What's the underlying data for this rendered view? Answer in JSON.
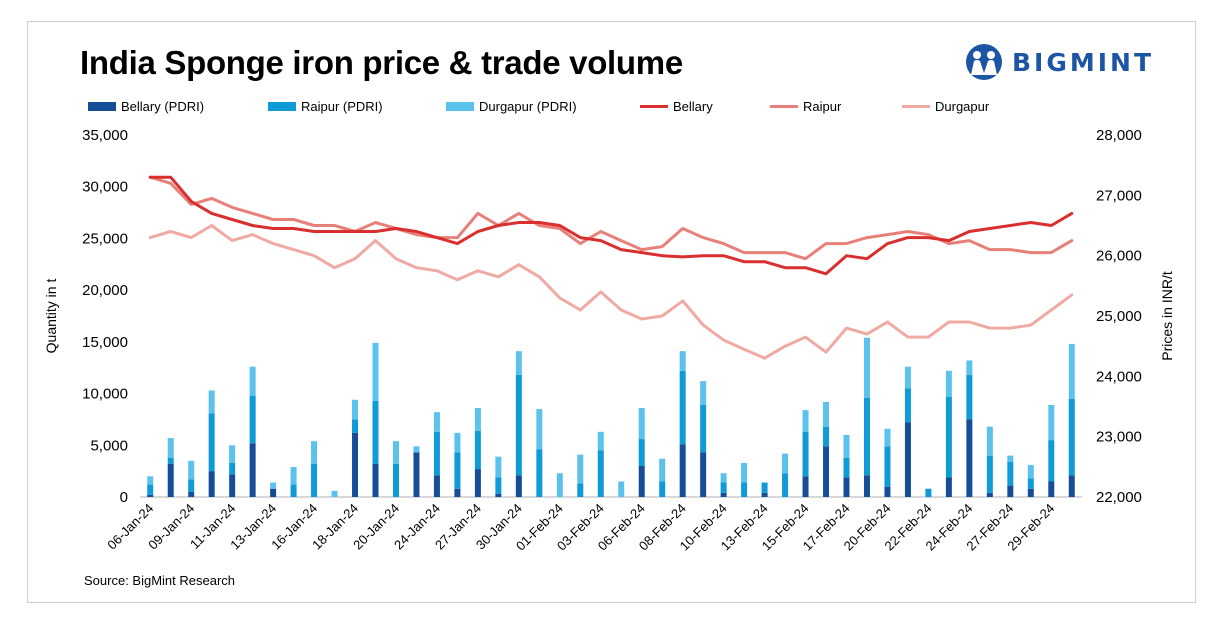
{
  "title": "India Sponge iron price & trade volume",
  "logo": {
    "text": "BIGMINT",
    "icon": "bigmint-people-icon"
  },
  "source": "Source: BigMint Research",
  "colors": {
    "bellary_bar": "#174c96",
    "raipur_bar": "#0e9bd7",
    "durgapur_bar": "#5bc2eb",
    "bellary_line": "#d92f2f",
    "raipur_line": "#e8807a",
    "durgapur_line": "#f0aaa4",
    "logo": "#1d55a5"
  },
  "legend": [
    {
      "label": "Bellary (PDRI)",
      "kind": "bar",
      "color": "#174c96"
    },
    {
      "label": "Raipur (PDRI)",
      "kind": "bar",
      "color": "#0e9bd7"
    },
    {
      "label": "Durgapur (PDRI)",
      "kind": "bar",
      "color": "#5bc2eb"
    },
    {
      "label": "Bellary",
      "kind": "line",
      "color": "#d92f2f"
    },
    {
      "label": "Raipur",
      "kind": "line",
      "color": "#e8807a"
    },
    {
      "label": "Durgapur",
      "kind": "line",
      "color": "#f0aaa4"
    }
  ],
  "chart_data": {
    "type": "bar",
    "stacked": true,
    "combo": "stacked bars (left axis) with lines (right axis)",
    "ylabel": "Quantity in t",
    "y2label": "Prices in INR/t",
    "ylim": [
      0,
      35000
    ],
    "y2lim": [
      22000,
      28000
    ],
    "yticks": [
      "0",
      "5,000",
      "10,000",
      "15,000",
      "20,000",
      "25,000",
      "30,000",
      "35,000"
    ],
    "y2ticks": [
      "22,000",
      "23,000",
      "24,000",
      "25,000",
      "26,000",
      "27,000",
      "28,000"
    ],
    "legend_position": "top",
    "grid": false,
    "xtick_labels": [
      "06-Jan-24",
      "09-Jan-24",
      "11-Jan-24",
      "13-Jan-24",
      "16-Jan-24",
      "18-Jan-24",
      "20-Jan-24",
      "24-Jan-24",
      "27-Jan-24",
      "30-Jan-24",
      "01-Feb-24",
      "03-Feb-24",
      "06-Feb-24",
      "08-Feb-24",
      "10-Feb-24",
      "13-Feb-24",
      "15-Feb-24",
      "17-Feb-24",
      "20-Feb-24",
      "22-Feb-24",
      "24-Feb-24",
      "27-Feb-24",
      "29-Feb-24"
    ],
    "series": [
      {
        "name": "Bellary (PDRI)",
        "kind": "bar",
        "axis": "left",
        "values": [
          200,
          3200,
          500,
          2500,
          2200,
          5200,
          800,
          0,
          0,
          0,
          6200,
          3200,
          0,
          4300,
          2100,
          800,
          2700,
          300,
          2100,
          0,
          0,
          0,
          0,
          0,
          3000,
          0,
          5100,
          4300,
          400,
          0,
          400,
          0,
          2000,
          4900,
          1900,
          2100,
          1000,
          7200,
          0,
          1900,
          7500,
          400,
          1100,
          800,
          1500,
          2100
        ]
      },
      {
        "name": "Raipur (PDRI)",
        "kind": "bar",
        "axis": "left",
        "values": [
          1000,
          600,
          1200,
          5600,
          1100,
          4600,
          0,
          1200,
          3200,
          0,
          1300,
          6100,
          3200,
          0,
          4200,
          3500,
          3700,
          1600,
          9700,
          4600,
          0,
          1300,
          4500,
          0,
          2600,
          1500,
          7100,
          4600,
          1000,
          1400,
          1000,
          2300,
          4300,
          1900,
          1900,
          7500,
          3900,
          3300,
          800,
          7800,
          4300,
          3600,
          2300,
          1000,
          4000,
          7400
        ]
      },
      {
        "name": "Durgapur (PDRI)",
        "kind": "bar",
        "axis": "left",
        "values": [
          800,
          1900,
          1800,
          2200,
          1700,
          2800,
          600,
          1700,
          2200,
          600,
          1900,
          5600,
          2200,
          600,
          1900,
          1900,
          2200,
          2000,
          2300,
          3900,
          2300,
          2800,
          1800,
          1500,
          3000,
          2200,
          1900,
          2300,
          900,
          1900,
          0,
          1900,
          2100,
          2400,
          2200,
          5800,
          1700,
          2100,
          0,
          2500,
          1400,
          2800,
          600,
          1300,
          3400,
          5300
        ]
      },
      {
        "name": "Bellary",
        "kind": "line",
        "axis": "right",
        "values": [
          27300,
          27300,
          26900,
          26700,
          26600,
          26500,
          26450,
          26450,
          26400,
          26400,
          26400,
          26400,
          26450,
          26400,
          26300,
          26200,
          26400,
          26500,
          26550,
          26550,
          26500,
          26300,
          26250,
          26100,
          26050,
          26000,
          25980,
          26000,
          26000,
          25900,
          25900,
          25800,
          25800,
          25700,
          26000,
          25950,
          26200,
          26300,
          26300,
          26250,
          26400,
          26450,
          26500,
          26550,
          26500,
          26700
        ]
      },
      {
        "name": "Raipur",
        "kind": "line",
        "axis": "right",
        "values": [
          27300,
          27200,
          26850,
          26950,
          26800,
          26700,
          26600,
          26600,
          26500,
          26500,
          26400,
          26550,
          26450,
          26350,
          26300,
          26300,
          26700,
          26500,
          26700,
          26500,
          26450,
          26200,
          26400,
          26250,
          26100,
          26150,
          26450,
          26300,
          26200,
          26050,
          26050,
          26050,
          25950,
          26200,
          26200,
          26300,
          26350,
          26400,
          26350,
          26200,
          26250,
          26100,
          26100,
          26050,
          26050,
          26250
        ]
      },
      {
        "name": "Durgapur",
        "kind": "line",
        "axis": "right",
        "values": [
          26300,
          26400,
          26300,
          26500,
          26250,
          26350,
          26200,
          26100,
          26000,
          25800,
          25950,
          26250,
          25950,
          25800,
          25750,
          25600,
          25750,
          25650,
          25850,
          25650,
          25300,
          25100,
          25400,
          25100,
          24950,
          25000,
          25250,
          24850,
          24600,
          24450,
          24300,
          24500,
          24650,
          24400,
          24800,
          24700,
          24900,
          24650,
          24650,
          24900,
          24900,
          24800,
          24800,
          24850,
          25100,
          25350
        ]
      }
    ]
  }
}
